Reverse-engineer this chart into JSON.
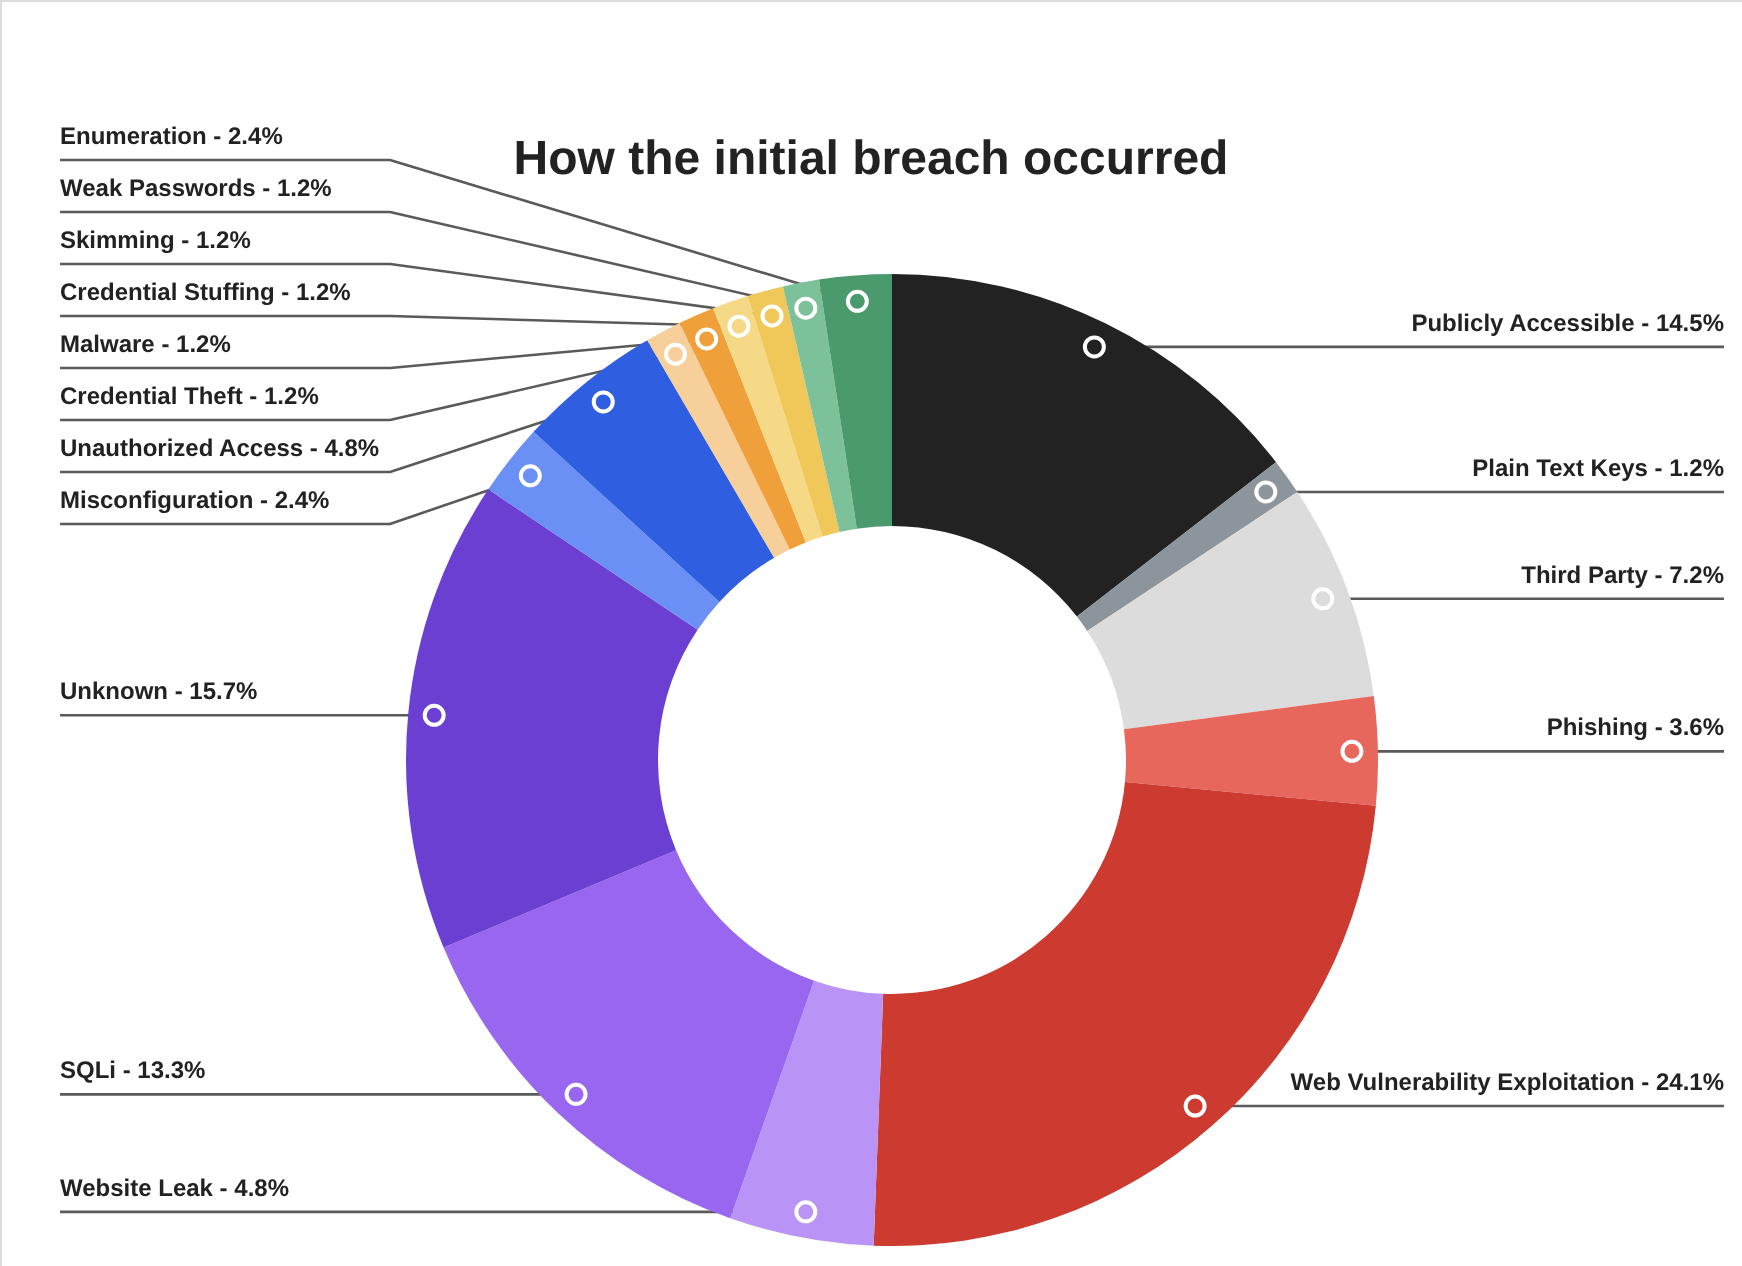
{
  "chart_data": {
    "type": "donut",
    "title": "How the initial breach occurred",
    "categories": [
      "Publicly Accessible",
      "Plain Text Keys",
      "Third Party",
      "Phishing",
      "Web Vulnerability Exploitation",
      "Website Leak",
      "SQLi",
      "Unknown",
      "Misconfiguration",
      "Unauthorized Access",
      "Credential Theft",
      "Malware",
      "Credential Stuffing",
      "Skimming",
      "Weak Passwords",
      "Enumeration"
    ],
    "values": [
      14.5,
      1.2,
      7.2,
      3.6,
      24.1,
      4.8,
      13.3,
      15.7,
      2.4,
      4.8,
      1.2,
      1.2,
      1.2,
      1.2,
      1.2,
      2.4
    ],
    "value_labels": [
      "14.5%",
      "1.2%",
      "7.2%",
      "3.6%",
      "24.1%",
      "4.8%",
      "13.3%",
      "15.7%",
      "2.4%",
      "4.8%",
      "1.2%",
      "1.2%",
      "1.2%",
      "1.2%",
      "1.2%",
      "2.4%"
    ],
    "colors": [
      "#222222",
      "#8c959b",
      "#dcdcdc",
      "#e8675d",
      "#cc3a30",
      "#b994f6",
      "#9966f0",
      "#6b3fd2",
      "#6a8ff5",
      "#2f5ee0",
      "#f6cf9a",
      "#f0a03a",
      "#f6d987",
      "#f0c85a",
      "#7cc19a",
      "#4a9a6e"
    ],
    "legend": false
  }
}
